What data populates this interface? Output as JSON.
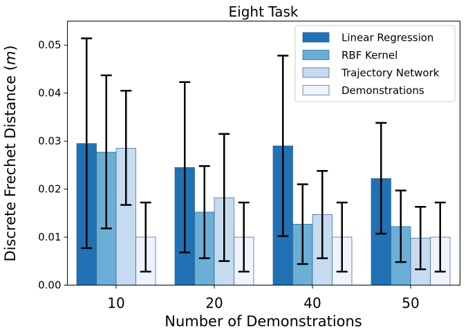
{
  "chart_data": {
    "type": "bar",
    "title": "Eight Task",
    "xlabel": "Number of Demonstrations",
    "ylabel": "Discrete Frechet Distance (m)",
    "ylabel_parts": [
      "Discrete Frechet Distance (",
      "m",
      ")"
    ],
    "categories": [
      "10",
      "20",
      "40",
      "50"
    ],
    "ylim": [
      0,
      0.055
    ],
    "yticks": [
      0.0,
      0.01,
      0.02,
      0.03,
      0.04,
      0.05
    ],
    "ytick_labels": [
      "0.00",
      "0.01",
      "0.02",
      "0.03",
      "0.04",
      "0.05"
    ],
    "legend_position": "top-right",
    "grid": false,
    "series": [
      {
        "name": "Linear Regression",
        "color": "#2171b5",
        "values": [
          0.0295,
          0.0245,
          0.029,
          0.0222
        ],
        "err_low": [
          0.0077,
          0.0068,
          0.0102,
          0.0107
        ],
        "err_high": [
          0.0514,
          0.0423,
          0.0478,
          0.0338
        ]
      },
      {
        "name": "RBF Kernel",
        "color": "#6baed6",
        "values": [
          0.0277,
          0.0152,
          0.0127,
          0.0122
        ],
        "err_low": [
          0.0118,
          0.0056,
          0.0044,
          0.0048
        ],
        "err_high": [
          0.0437,
          0.0248,
          0.021,
          0.0197
        ]
      },
      {
        "name": "Trajectory Network",
        "color": "#c6dbef",
        "values": [
          0.0285,
          0.0182,
          0.0147,
          0.0098
        ],
        "err_low": [
          0.0167,
          0.005,
          0.0056,
          0.0033
        ],
        "err_high": [
          0.0405,
          0.0315,
          0.0238,
          0.0163
        ]
      },
      {
        "name": "Demonstrations",
        "color": "#eff3ff",
        "values": [
          0.01,
          0.01,
          0.01,
          0.01
        ],
        "err_low": [
          0.0028,
          0.0028,
          0.0028,
          0.0028
        ],
        "err_high": [
          0.0172,
          0.0172,
          0.0172,
          0.0172
        ]
      }
    ]
  }
}
